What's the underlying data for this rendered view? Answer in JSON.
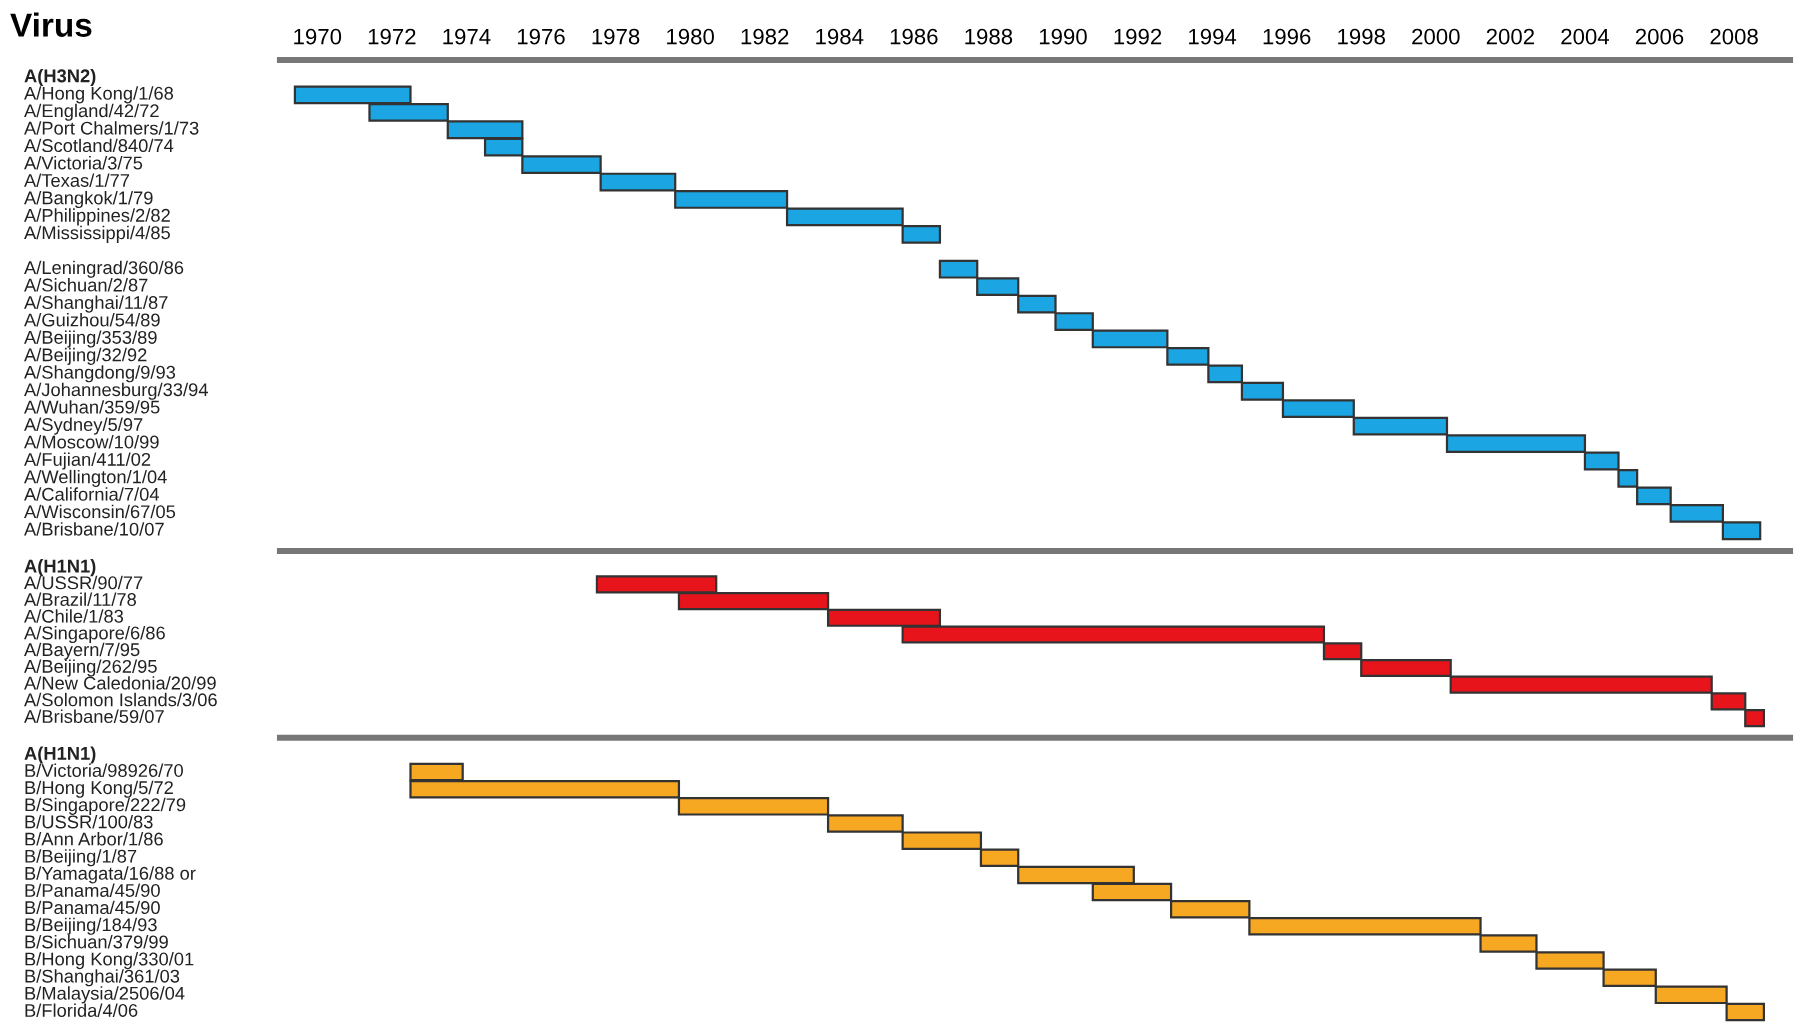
{
  "chart_data": [
    {
      "type": "bar",
      "orientation": "horizontal",
      "ylabel": "Virus",
      "color": "#1ba6e3",
      "categories": [
        "A(H3N2)",
        "A/Hong Kong/1/68",
        "A/England/42/72",
        "A/Port Chalmers/1/73",
        "A/Scotland/840/74",
        "A/Victoria/3/75",
        "A/Texas/1/77",
        "A/Bangkok/1/79",
        "A/Philippines/2/82",
        "A/Mississippi/4/85",
        null,
        "A/Leningrad/360/86",
        "A/Sichuan/2/87",
        "A/Shanghai/11/87",
        "A/Guizhou/54/89",
        "A/Beijing/353/89",
        "A/Beijing/32/92",
        "A/Shangdong/9/93",
        "A/Johannesburg/33/94",
        "A/Wuhan/359/95",
        "A/Sydney/5/97",
        "A/Moscow/10/99",
        "A/Fujian/411/02",
        "A/Wellington/1/04",
        "A/California/7/04",
        "A/Wisconsin/67/05",
        "A/Brisbane/10/07"
      ],
      "base": [
        null,
        1969.4,
        1971.4,
        1973.5,
        1974.5,
        1975.5,
        1977.6,
        1979.6,
        1982.6,
        1985.7,
        null,
        1986.7,
        1987.7,
        1988.8,
        1989.8,
        1990.8,
        1992.8,
        1993.9,
        1994.8,
        1995.9,
        1997.8,
        2000.3,
        2004.0,
        2004.9,
        2005.4,
        2006.3,
        2007.7
      ],
      "values": [
        null,
        3.1,
        2.1,
        2.0,
        1.0,
        2.1,
        2.0,
        3.0,
        3.1,
        1.0,
        null,
        1.0,
        1.1,
        1.0,
        1.0,
        2.0,
        1.1,
        0.9,
        1.1,
        1.9,
        2.5,
        3.7,
        0.9,
        0.5,
        0.9,
        1.4,
        1.0
      ],
      "xlim": [
        1969,
        2009.5
      ],
      "xticks": [
        1970,
        1972,
        1974,
        1976,
        1978,
        1980,
        1982,
        1984,
        1986,
        1988,
        1990,
        1992,
        1994,
        1996,
        1998,
        2000,
        2002,
        2004,
        2006,
        2008
      ],
      "grid": false,
      "legend": false
    },
    {
      "type": "bar",
      "orientation": "horizontal",
      "color": "#e8141b",
      "categories": [
        "A(H1N1)",
        "A/USSR/90/77",
        "A/Brazil/11/78",
        "A/Chile/1/83",
        "A/Singapore/6/86",
        "A/Bayern/7/95",
        "A/Beijing/262/95",
        "A/New Caledonia/20/99",
        "A/Solomon Islands/3/06",
        "A/Brisbane/59/07"
      ],
      "base": [
        null,
        1977.5,
        1979.7,
        1983.7,
        1985.7,
        1997.0,
        1998.0,
        2000.4,
        2007.4,
        2008.3
      ],
      "values": [
        null,
        3.2,
        4.0,
        3.0,
        11.3,
        1.0,
        2.4,
        7.0,
        0.9,
        0.5
      ],
      "xlim": [
        1969,
        2009.5
      ],
      "xticks": [
        1970,
        1972,
        1974,
        1976,
        1978,
        1980,
        1982,
        1984,
        1986,
        1988,
        1990,
        1992,
        1994,
        1996,
        1998,
        2000,
        2002,
        2004,
        2006,
        2008
      ],
      "tick_labels": "y",
      "grid": false,
      "legend": false
    },
    {
      "type": "bar",
      "orientation": "horizontal",
      "color": "#f7a823",
      "categories": [
        "A(H1N1)",
        "B/Victoria/98926/70",
        "B/Hong Kong/5/72",
        "B/Singapore/222/79",
        "B/USSR/100/83",
        "B/Ann Arbor/1/86",
        "B/Beijing/1/87",
        "B/Yamagata/16/88 or",
        "B/Panama/45/90",
        "B/Panama/45/90",
        "B/Beijing/184/93",
        "B/Sichuan/379/99",
        "B/Hong Kong/330/01",
        "B/Shanghai/361/03",
        "B/Malaysia/2506/04",
        "B/Florida/4/06"
      ],
      "base": [
        null,
        1972.5,
        1972.5,
        1979.7,
        1983.7,
        1985.7,
        1987.8,
        1988.8,
        1990.8,
        1992.9,
        1995.0,
        2001.2,
        2002.7,
        2004.5,
        2005.9,
        2007.8
      ],
      "values": [
        null,
        1.4,
        7.2,
        4.0,
        2.0,
        2.1,
        1.0,
        3.1,
        2.1,
        2.1,
        6.2,
        1.5,
        1.8,
        1.4,
        1.9,
        1.0
      ],
      "xlim": [
        1969,
        2009.5
      ],
      "xticks": [
        1970,
        1972,
        1974,
        1976,
        1978,
        1980,
        1982,
        1984,
        1986,
        1988,
        1990,
        1992,
        1994,
        1996,
        1998,
        2000,
        2002,
        2004,
        2006,
        2008
      ],
      "tick_labels": "y",
      "grid": false,
      "legend": false
    }
  ]
}
